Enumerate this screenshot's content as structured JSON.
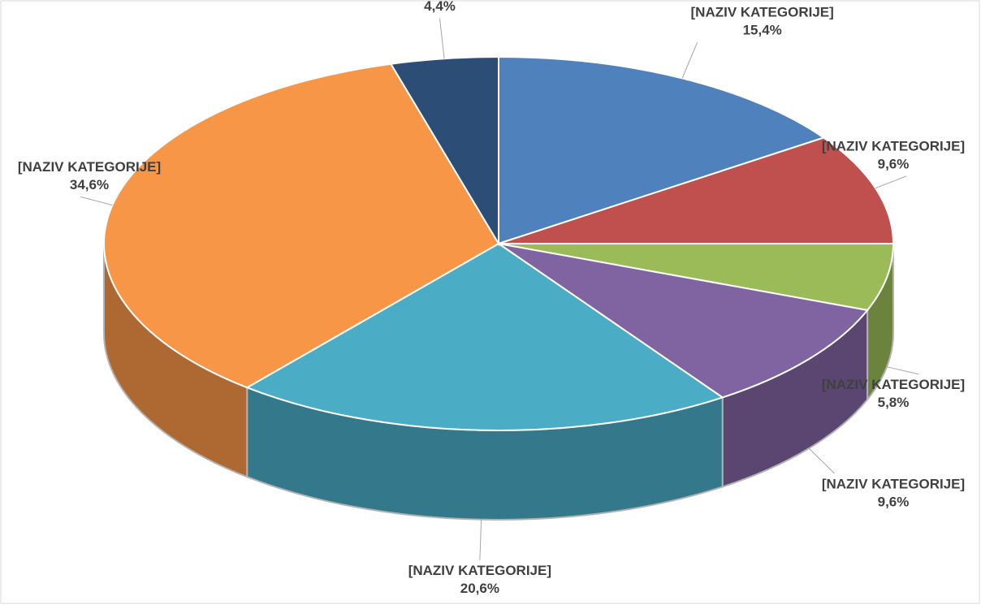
{
  "chart_data": {
    "type": "pie",
    "categories": [
      "[NAZIV KATEGORIJE]",
      "[NAZIV KATEGORIJE]",
      "[NAZIV KATEGORIJE]",
      "[NAZIV KATEGORIJE]",
      "[NAZIV KATEGORIJE]",
      "[NAZIV KATEGORIJE]",
      "[NAZIV KATEGORIJE]"
    ],
    "values": [
      15.4,
      9.6,
      5.8,
      9.6,
      20.6,
      34.6,
      4.4
    ],
    "value_labels": [
      "15,4%",
      "9,6%",
      "5,8%",
      "9,6%",
      "20,6%",
      "34,6%",
      "4,4%"
    ],
    "colors": [
      "#4f81bd",
      "#c0504d",
      "#9bbb59",
      "#8064a2",
      "#4bacc6",
      "#f79646",
      "#2c4d75"
    ]
  }
}
